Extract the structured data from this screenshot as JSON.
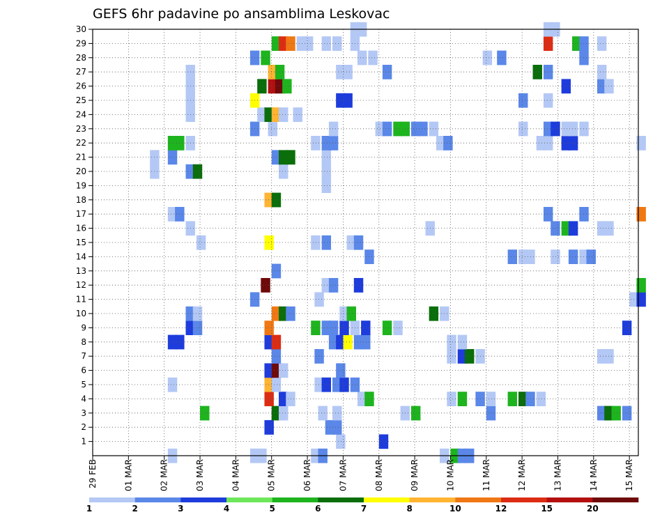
{
  "chart_data": {
    "type": "heatmap",
    "title": "GEFS 6hr padavine po ansamblima Leskovac",
    "xlabel": "",
    "ylabel": "",
    "grid": true,
    "x_tick_labels": [
      "29 FEB",
      "01 MAR",
      "02 MAR",
      "03 MAR",
      "04 MAR",
      "05 MAR",
      "06 MAR",
      "07 MAR",
      "08 MAR",
      "09 MAR",
      "10 MAR",
      "11 MAR",
      "12 MAR",
      "13 MAR",
      "14 MAR",
      "15 MAR"
    ],
    "y_tick_labels": [
      "1",
      "2",
      "3",
      "4",
      "5",
      "6",
      "7",
      "8",
      "9",
      "10",
      "11",
      "12",
      "13",
      "14",
      "15",
      "16",
      "17",
      "18",
      "19",
      "20",
      "21",
      "22",
      "23",
      "24",
      "25",
      "26",
      "27",
      "28",
      "29",
      "30"
    ],
    "x_range_days": [
      0,
      15.25
    ],
    "y_range": [
      0,
      30
    ],
    "colorbar": {
      "labels": [
        "1",
        "2",
        "3",
        "4",
        "5",
        "6",
        "7",
        "8",
        "10",
        "12",
        "15",
        "20"
      ],
      "colors": [
        "#b4c8f5",
        "#5a87e8",
        "#1e3cdc",
        "#6ee65a",
        "#1eb41e",
        "#0a6e0a",
        "#ffff00",
        "#ffb432",
        "#f07814",
        "#dc2d14",
        "#b40f0f",
        "#6e0a0a"
      ]
    },
    "cells": [
      [
        2.1,
        0,
        0
      ],
      [
        4.4,
        0,
        0
      ],
      [
        4.6,
        0,
        0
      ],
      [
        6.1,
        0,
        0
      ],
      [
        6.3,
        0,
        1
      ],
      [
        9.7,
        0,
        0
      ],
      [
        10.0,
        0,
        4
      ],
      [
        10.2,
        0,
        1
      ],
      [
        10.4,
        0,
        1
      ],
      [
        6.8,
        1,
        0
      ],
      [
        8.0,
        1,
        2
      ],
      [
        4.8,
        2,
        2
      ],
      [
        6.5,
        2,
        1
      ],
      [
        6.7,
        2,
        1
      ],
      [
        3.0,
        3,
        4
      ],
      [
        5.0,
        3,
        5
      ],
      [
        5.2,
        3,
        0
      ],
      [
        6.3,
        3,
        0
      ],
      [
        6.7,
        3,
        0
      ],
      [
        8.6,
        3,
        0
      ],
      [
        8.9,
        3,
        4
      ],
      [
        11.0,
        3,
        1
      ],
      [
        14.1,
        3,
        1
      ],
      [
        14.3,
        3,
        5
      ],
      [
        14.5,
        3,
        4
      ],
      [
        14.8,
        3,
        1
      ],
      [
        4.8,
        4,
        9
      ],
      [
        5.2,
        4,
        2
      ],
      [
        5.4,
        4,
        0
      ],
      [
        7.4,
        4,
        0
      ],
      [
        7.6,
        4,
        4
      ],
      [
        9.9,
        4,
        0
      ],
      [
        10.2,
        4,
        4
      ],
      [
        10.7,
        4,
        1
      ],
      [
        11.0,
        4,
        0
      ],
      [
        11.6,
        4,
        4
      ],
      [
        11.9,
        4,
        5
      ],
      [
        12.1,
        4,
        1
      ],
      [
        12.4,
        4,
        0
      ],
      [
        2.1,
        5,
        0
      ],
      [
        4.8,
        5,
        7
      ],
      [
        5.0,
        5,
        0
      ],
      [
        6.2,
        5,
        0
      ],
      [
        6.4,
        5,
        2
      ],
      [
        6.7,
        5,
        1
      ],
      [
        6.9,
        5,
        2
      ],
      [
        7.2,
        5,
        1
      ],
      [
        4.8,
        6,
        2
      ],
      [
        5.0,
        6,
        11
      ],
      [
        5.2,
        6,
        0
      ],
      [
        6.8,
        6,
        1
      ],
      [
        5.0,
        7,
        1
      ],
      [
        6.2,
        7,
        1
      ],
      [
        9.9,
        7,
        0
      ],
      [
        10.2,
        7,
        2
      ],
      [
        10.4,
        7,
        5
      ],
      [
        10.7,
        7,
        0
      ],
      [
        14.1,
        7,
        0
      ],
      [
        14.3,
        7,
        0
      ],
      [
        2.1,
        8,
        2
      ],
      [
        2.3,
        8,
        2
      ],
      [
        4.8,
        8,
        2
      ],
      [
        5.0,
        8,
        9
      ],
      [
        6.6,
        8,
        1
      ],
      [
        6.8,
        8,
        2
      ],
      [
        7.0,
        8,
        6
      ],
      [
        7.3,
        8,
        1
      ],
      [
        7.5,
        8,
        1
      ],
      [
        9.9,
        8,
        0
      ],
      [
        10.2,
        8,
        0
      ],
      [
        2.6,
        9,
        2
      ],
      [
        2.8,
        9,
        1
      ],
      [
        4.8,
        9,
        8
      ],
      [
        6.1,
        9,
        4
      ],
      [
        6.4,
        9,
        1
      ],
      [
        6.6,
        9,
        1
      ],
      [
        6.9,
        9,
        2
      ],
      [
        7.2,
        9,
        0
      ],
      [
        7.5,
        9,
        2
      ],
      [
        8.1,
        9,
        4
      ],
      [
        8.4,
        9,
        0
      ],
      [
        14.8,
        9,
        2
      ],
      [
        2.6,
        10,
        1
      ],
      [
        2.8,
        10,
        0
      ],
      [
        5.0,
        10,
        8
      ],
      [
        5.2,
        10,
        5
      ],
      [
        5.4,
        10,
        1
      ],
      [
        6.9,
        10,
        0
      ],
      [
        7.1,
        10,
        4
      ],
      [
        9.4,
        10,
        5
      ],
      [
        9.7,
        10,
        0
      ],
      [
        4.4,
        11,
        1
      ],
      [
        6.2,
        11,
        0
      ],
      [
        15.0,
        11,
        0
      ],
      [
        15.2,
        11,
        2
      ],
      [
        4.7,
        12,
        11
      ],
      [
        6.4,
        12,
        0
      ],
      [
        6.6,
        12,
        1
      ],
      [
        7.3,
        12,
        2
      ],
      [
        15.2,
        12,
        4
      ],
      [
        5.0,
        13,
        1
      ],
      [
        7.6,
        14,
        1
      ],
      [
        11.6,
        14,
        1
      ],
      [
        11.9,
        14,
        0
      ],
      [
        12.1,
        14,
        0
      ],
      [
        12.8,
        14,
        0
      ],
      [
        13.3,
        14,
        1
      ],
      [
        13.6,
        14,
        0
      ],
      [
        13.8,
        14,
        1
      ],
      [
        2.9,
        15,
        0
      ],
      [
        4.8,
        15,
        6
      ],
      [
        6.1,
        15,
        0
      ],
      [
        6.4,
        15,
        1
      ],
      [
        7.1,
        15,
        0
      ],
      [
        7.3,
        15,
        1
      ],
      [
        2.6,
        16,
        0
      ],
      [
        9.3,
        16,
        0
      ],
      [
        12.8,
        16,
        1
      ],
      [
        13.1,
        16,
        4
      ],
      [
        13.3,
        16,
        2
      ],
      [
        14.1,
        16,
        0
      ],
      [
        14.3,
        16,
        0
      ],
      [
        2.1,
        17,
        0
      ],
      [
        2.3,
        17,
        1
      ],
      [
        12.6,
        17,
        1
      ],
      [
        13.6,
        17,
        1
      ],
      [
        15.2,
        17,
        8
      ],
      [
        4.8,
        18,
        7
      ],
      [
        5.0,
        18,
        5
      ],
      [
        6.4,
        19,
        0
      ],
      [
        1.6,
        20,
        0
      ],
      [
        2.6,
        20,
        1
      ],
      [
        2.8,
        20,
        5
      ],
      [
        5.2,
        20,
        0
      ],
      [
        6.4,
        20,
        0
      ],
      [
        1.6,
        21,
        0
      ],
      [
        2.1,
        21,
        1
      ],
      [
        5.0,
        21,
        1
      ],
      [
        5.2,
        21,
        5
      ],
      [
        5.4,
        21,
        5
      ],
      [
        6.4,
        21,
        0
      ],
      [
        2.1,
        22,
        4
      ],
      [
        2.3,
        22,
        4
      ],
      [
        2.6,
        22,
        0
      ],
      [
        6.1,
        22,
        0
      ],
      [
        6.4,
        22,
        1
      ],
      [
        6.6,
        22,
        1
      ],
      [
        9.6,
        22,
        0
      ],
      [
        9.8,
        22,
        1
      ],
      [
        12.4,
        22,
        0
      ],
      [
        12.6,
        22,
        0
      ],
      [
        13.1,
        22,
        2
      ],
      [
        13.3,
        22,
        2
      ],
      [
        15.2,
        22,
        0
      ],
      [
        4.4,
        23,
        1
      ],
      [
        4.9,
        23,
        0
      ],
      [
        6.6,
        23,
        0
      ],
      [
        7.9,
        23,
        0
      ],
      [
        8.1,
        23,
        1
      ],
      [
        8.4,
        23,
        4
      ],
      [
        8.6,
        23,
        4
      ],
      [
        8.9,
        23,
        1
      ],
      [
        9.1,
        23,
        1
      ],
      [
        9.4,
        23,
        0
      ],
      [
        11.9,
        23,
        0
      ],
      [
        12.6,
        23,
        1
      ],
      [
        12.8,
        23,
        2
      ],
      [
        13.1,
        23,
        0
      ],
      [
        13.3,
        23,
        0
      ],
      [
        13.6,
        23,
        0
      ],
      [
        2.6,
        24,
        0
      ],
      [
        4.6,
        24,
        0
      ],
      [
        4.8,
        24,
        5
      ],
      [
        5.0,
        24,
        7
      ],
      [
        5.2,
        24,
        0
      ],
      [
        5.6,
        24,
        0
      ],
      [
        2.6,
        25,
        0
      ],
      [
        4.4,
        25,
        6
      ],
      [
        6.8,
        25,
        2
      ],
      [
        7.0,
        25,
        2
      ],
      [
        11.9,
        25,
        1
      ],
      [
        12.6,
        25,
        0
      ],
      [
        2.6,
        26,
        0
      ],
      [
        4.6,
        26,
        5
      ],
      [
        4.9,
        26,
        10
      ],
      [
        5.1,
        26,
        11
      ],
      [
        5.3,
        26,
        4
      ],
      [
        13.1,
        26,
        2
      ],
      [
        14.1,
        26,
        1
      ],
      [
        14.3,
        26,
        0
      ],
      [
        2.6,
        27,
        0
      ],
      [
        4.9,
        27,
        7
      ],
      [
        5.1,
        27,
        4
      ],
      [
        6.8,
        27,
        0
      ],
      [
        7.0,
        27,
        0
      ],
      [
        8.1,
        27,
        1
      ],
      [
        12.3,
        27,
        5
      ],
      [
        12.6,
        27,
        1
      ],
      [
        14.1,
        27,
        0
      ],
      [
        4.4,
        28,
        1
      ],
      [
        4.7,
        28,
        4
      ],
      [
        7.4,
        28,
        0
      ],
      [
        7.7,
        28,
        0
      ],
      [
        10.9,
        28,
        0
      ],
      [
        11.3,
        28,
        1
      ],
      [
        13.6,
        28,
        1
      ],
      [
        5.0,
        29,
        4
      ],
      [
        5.2,
        29,
        9
      ],
      [
        5.4,
        29,
        8
      ],
      [
        5.7,
        29,
        0
      ],
      [
        5.9,
        29,
        0
      ],
      [
        6.4,
        29,
        0
      ],
      [
        6.7,
        29,
        0
      ],
      [
        7.2,
        29,
        0
      ],
      [
        12.6,
        29,
        9
      ],
      [
        13.4,
        29,
        4
      ],
      [
        13.6,
        29,
        1
      ],
      [
        14.1,
        29,
        0
      ],
      [
        7.2,
        30,
        0
      ],
      [
        7.4,
        30,
        0
      ],
      [
        12.6,
        30,
        0
      ],
      [
        12.8,
        30,
        0
      ]
    ]
  }
}
